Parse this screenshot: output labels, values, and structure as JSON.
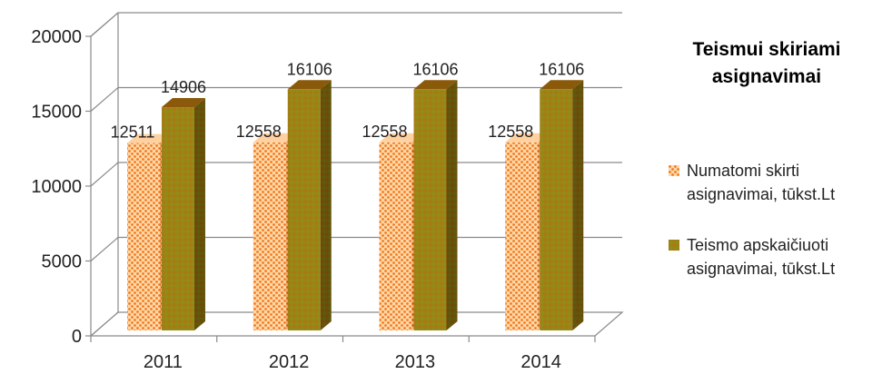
{
  "chart_data": {
    "type": "bar",
    "title": "Teismui skiriami asignavimai",
    "title_lines": [
      "Teismui skiriami",
      "asignavimai"
    ],
    "categories": [
      "2011",
      "2012",
      "2013",
      "2014"
    ],
    "series": [
      {
        "name": "Numatomi skirti asignavimai, tūkst.Lt",
        "name_lines": [
          "Numatomi skirti",
          "asignavimai, tūkst.Lt"
        ],
        "values": [
          12511,
          12558,
          12558,
          12558
        ],
        "color": "#f28c3c"
      },
      {
        "name": "Teismo apskaičiuoti asignavimai, tūkst.Lt",
        "name_lines": [
          "Teismo apskaičiuoti",
          "asignavimai, tūkst.Lt"
        ],
        "values": [
          14906,
          16106,
          16106,
          16106
        ],
        "color": "#9a6a10"
      }
    ],
    "y_ticks": [
      "0",
      "5000",
      "10000",
      "15000",
      "20000"
    ],
    "ylim": [
      0,
      20000
    ],
    "grid": true,
    "legend_position": "right",
    "style": "3d-clustered-column"
  }
}
